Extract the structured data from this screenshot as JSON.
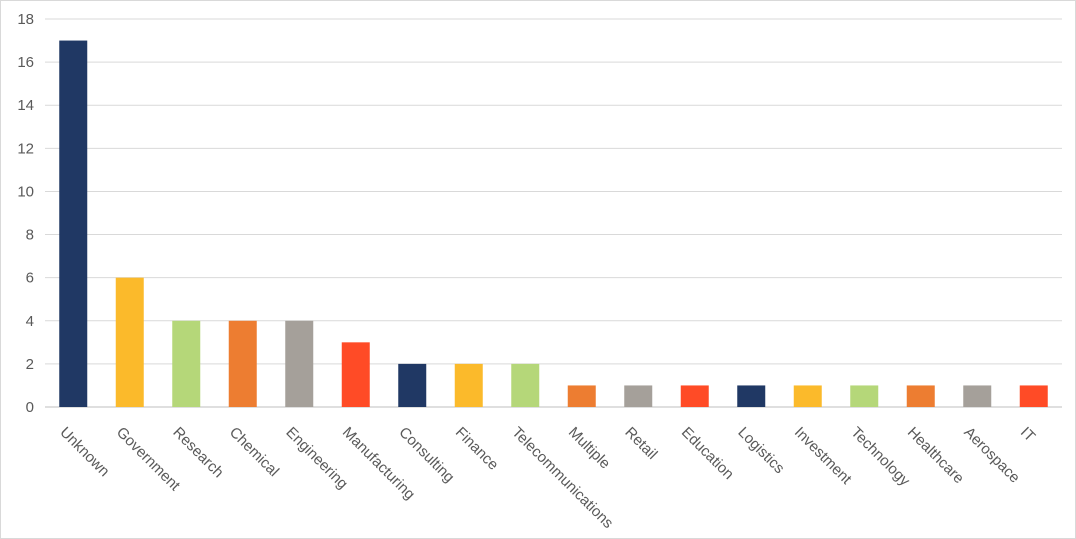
{
  "chart_data": {
    "type": "bar",
    "title": "",
    "xlabel": "",
    "ylabel": "",
    "ylim": [
      0,
      18
    ],
    "yticks": [
      0,
      2,
      4,
      6,
      8,
      10,
      12,
      14,
      16,
      18
    ],
    "grid": true,
    "legend": "none",
    "categories": [
      "Unknown",
      "Government",
      "Research",
      "Chemical",
      "Engineering",
      "Manufacturing",
      "Consulting",
      "Finance",
      "Telecommunications",
      "Multiple",
      "Retail",
      "Education",
      "Logistics",
      "Investment",
      "Technology",
      "Healthcare",
      "Aerospace",
      "IT"
    ],
    "values": [
      17,
      6,
      4,
      4,
      4,
      3,
      2,
      2,
      2,
      1,
      1,
      1,
      1,
      1,
      1,
      1,
      1,
      1
    ],
    "colors": [
      "#203864",
      "#FBBA2B",
      "#B5D779",
      "#ED7D31",
      "#A5A09A",
      "#FF4B26",
      "#203864",
      "#FBBA2B",
      "#B5D779",
      "#ED7D31",
      "#A5A09A",
      "#FF4B26",
      "#203864",
      "#FBBA2B",
      "#B5D779",
      "#ED7D31",
      "#A5A09A",
      "#FF4B26"
    ]
  }
}
